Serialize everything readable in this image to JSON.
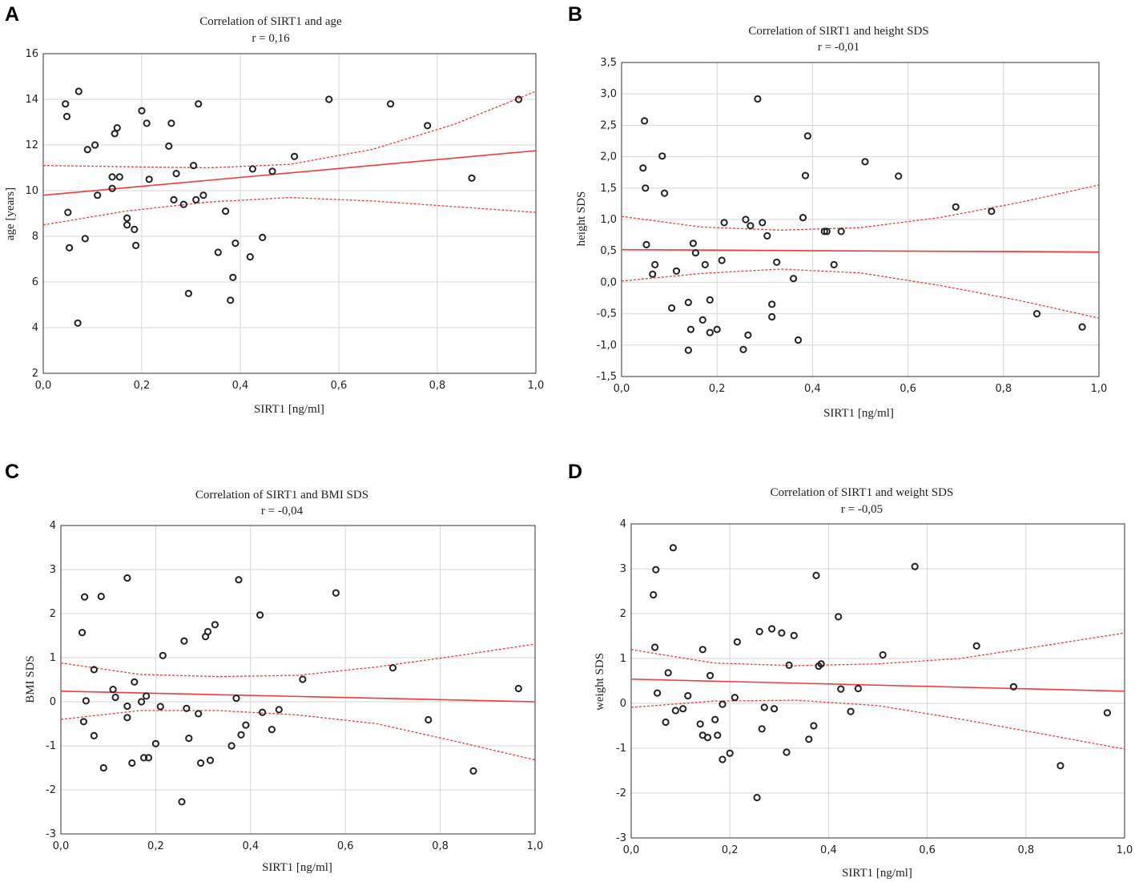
{
  "chart_data": [
    {
      "panel": "A",
      "type": "scatter",
      "title": "Correlation of SIRT1 and age",
      "r_label": "r =  0,16",
      "xlabel": "SIRT1 [ng/ml]",
      "ylabel": "age [years]",
      "xlim": [
        0,
        1
      ],
      "ylim": [
        2,
        16
      ],
      "xticks": [
        0,
        0.2,
        0.4,
        0.6,
        0.8,
        1.0
      ],
      "xtick_labels": [
        "0,0",
        "0,2",
        "0,4",
        "0,6",
        "0,8",
        "1,0"
      ],
      "yticks": [
        2,
        4,
        6,
        8,
        10,
        12,
        14,
        16
      ],
      "ytick_labels": [
        "2",
        "4",
        "6",
        "8",
        "10",
        "12",
        "14",
        "16"
      ],
      "grid": true,
      "regression": {
        "intercept": 9.8,
        "slope": 1.95
      },
      "ci": {
        "upper": [
          11.1,
          11.05,
          11.0,
          11.15,
          11.8,
          12.9,
          14.35
        ],
        "lower": [
          8.5,
          9.1,
          9.5,
          9.7,
          9.55,
          9.3,
          9.05
        ]
      },
      "points": [
        [
          0.045,
          13.8
        ],
        [
          0.048,
          13.25
        ],
        [
          0.05,
          9.05
        ],
        [
          0.053,
          7.5
        ],
        [
          0.07,
          4.2
        ],
        [
          0.072,
          14.35
        ],
        [
          0.085,
          7.9
        ],
        [
          0.09,
          11.8
        ],
        [
          0.105,
          12.0
        ],
        [
          0.11,
          9.8
        ],
        [
          0.14,
          10.6
        ],
        [
          0.14,
          10.1
        ],
        [
          0.145,
          12.5
        ],
        [
          0.15,
          12.75
        ],
        [
          0.155,
          10.6
        ],
        [
          0.17,
          8.8
        ],
        [
          0.17,
          8.5
        ],
        [
          0.185,
          8.3
        ],
        [
          0.188,
          7.6
        ],
        [
          0.2,
          13.5
        ],
        [
          0.21,
          12.95
        ],
        [
          0.215,
          10.5
        ],
        [
          0.255,
          11.95
        ],
        [
          0.26,
          12.95
        ],
        [
          0.265,
          9.6
        ],
        [
          0.27,
          10.75
        ],
        [
          0.285,
          9.4
        ],
        [
          0.295,
          5.5
        ],
        [
          0.305,
          11.1
        ],
        [
          0.31,
          9.6
        ],
        [
          0.315,
          13.8
        ],
        [
          0.325,
          9.8
        ],
        [
          0.355,
          7.3
        ],
        [
          0.37,
          9.1
        ],
        [
          0.38,
          5.2
        ],
        [
          0.385,
          6.2
        ],
        [
          0.39,
          7.7
        ],
        [
          0.42,
          7.1
        ],
        [
          0.425,
          10.95
        ],
        [
          0.445,
          7.95
        ],
        [
          0.465,
          10.85
        ],
        [
          0.51,
          11.5
        ],
        [
          0.58,
          14.0
        ],
        [
          0.705,
          13.8
        ],
        [
          0.78,
          12.85
        ],
        [
          0.87,
          10.55
        ],
        [
          0.965,
          14.0
        ]
      ]
    },
    {
      "panel": "B",
      "type": "scatter",
      "title": "Correlation of SIRT1 and height SDS",
      "r_label": "r =  -0,01",
      "xlabel": "SIRT1 [ng/ml]",
      "ylabel": "height SDS",
      "xlim": [
        0,
        1
      ],
      "ylim": [
        -1.5,
        3.5
      ],
      "xticks": [
        0,
        0.2,
        0.4,
        0.6,
        0.8,
        1.0
      ],
      "xtick_labels": [
        "0,0",
        "0,2",
        "0,4",
        "0,6",
        "0,8",
        "1,0"
      ],
      "yticks": [
        -1.5,
        -1.0,
        -0.5,
        0,
        0.5,
        1.0,
        1.5,
        2.0,
        2.5,
        3.0,
        3.5
      ],
      "ytick_labels": [
        "-1,5",
        "-1,0",
        "-0,5",
        "0,0",
        "0,5",
        "1,0",
        "1,5",
        "2,0",
        "2,5",
        "3,0",
        "3,5"
      ],
      "grid": true,
      "regression": {
        "intercept": 0.52,
        "slope": -0.04
      },
      "ci": {
        "upper": [
          1.05,
          0.88,
          0.83,
          0.87,
          1.03,
          1.27,
          1.55
        ],
        "lower": [
          0.02,
          0.14,
          0.21,
          0.15,
          -0.05,
          -0.29,
          -0.57
        ]
      },
      "points": [
        [
          0.045,
          1.82
        ],
        [
          0.048,
          2.57
        ],
        [
          0.05,
          1.5
        ],
        [
          0.052,
          0.6
        ],
        [
          0.065,
          0.13
        ],
        [
          0.07,
          0.28
        ],
        [
          0.085,
          2.01
        ],
        [
          0.09,
          1.42
        ],
        [
          0.105,
          -0.41
        ],
        [
          0.115,
          0.18
        ],
        [
          0.14,
          -0.32
        ],
        [
          0.14,
          -1.08
        ],
        [
          0.145,
          -0.75
        ],
        [
          0.15,
          0.62
        ],
        [
          0.155,
          0.47
        ],
        [
          0.17,
          -0.6
        ],
        [
          0.175,
          0.28
        ],
        [
          0.185,
          -0.28
        ],
        [
          0.185,
          -0.8
        ],
        [
          0.2,
          -0.75
        ],
        [
          0.21,
          0.35
        ],
        [
          0.215,
          0.95
        ],
        [
          0.255,
          -1.07
        ],
        [
          0.26,
          1.0
        ],
        [
          0.265,
          -0.84
        ],
        [
          0.27,
          0.9
        ],
        [
          0.285,
          2.92
        ],
        [
          0.295,
          0.95
        ],
        [
          0.305,
          0.74
        ],
        [
          0.315,
          -0.35
        ],
        [
          0.315,
          -0.55
        ],
        [
          0.325,
          0.32
        ],
        [
          0.36,
          0.06
        ],
        [
          0.37,
          -0.92
        ],
        [
          0.38,
          1.03
        ],
        [
          0.385,
          1.7
        ],
        [
          0.39,
          2.33
        ],
        [
          0.425,
          0.81
        ],
        [
          0.43,
          0.81
        ],
        [
          0.445,
          0.28
        ],
        [
          0.46,
          0.81
        ],
        [
          0.51,
          1.92
        ],
        [
          0.58,
          1.69
        ],
        [
          0.7,
          1.2
        ],
        [
          0.775,
          1.13
        ],
        [
          0.87,
          -0.5
        ],
        [
          0.965,
          -0.71
        ]
      ]
    },
    {
      "panel": "C",
      "type": "scatter",
      "title": "Correlation of SIRT1 and BMI SDS",
      "r_label": "r =  -0,04",
      "xlabel": "SIRT1 [ng/ml]",
      "ylabel": "BMI SDS",
      "xlim": [
        0,
        1
      ],
      "ylim": [
        -3,
        4
      ],
      "xticks": [
        0,
        0.2,
        0.4,
        0.6,
        0.8,
        1.0
      ],
      "xtick_labels": [
        "0,0",
        "0,2",
        "0,4",
        "0,6",
        "0,8",
        "1,0"
      ],
      "yticks": [
        -3,
        -2,
        -1,
        0,
        1,
        2,
        3,
        4
      ],
      "ytick_labels": [
        "-3",
        "-2",
        "-1",
        "0",
        "1",
        "2",
        "3",
        "4"
      ],
      "grid": true,
      "regression": {
        "intercept": 0.24,
        "slope": -0.24
      },
      "ci": {
        "upper": [
          0.88,
          0.62,
          0.57,
          0.6,
          0.79,
          1.04,
          1.31
        ],
        "lower": [
          -0.4,
          -0.2,
          -0.2,
          -0.3,
          -0.5,
          -0.9,
          -1.32
        ]
      },
      "points": [
        [
          0.045,
          1.57
        ],
        [
          0.048,
          -0.45
        ],
        [
          0.05,
          2.38
        ],
        [
          0.053,
          0.02
        ],
        [
          0.07,
          0.73
        ],
        [
          0.07,
          -0.77
        ],
        [
          0.085,
          2.39
        ],
        [
          0.09,
          -1.5
        ],
        [
          0.11,
          0.28
        ],
        [
          0.115,
          0.1
        ],
        [
          0.14,
          2.81
        ],
        [
          0.14,
          -0.1
        ],
        [
          0.14,
          -0.36
        ],
        [
          0.15,
          -1.39
        ],
        [
          0.155,
          0.45
        ],
        [
          0.17,
          0.0
        ],
        [
          0.175,
          -1.27
        ],
        [
          0.18,
          0.13
        ],
        [
          0.185,
          -1.27
        ],
        [
          0.2,
          -0.95
        ],
        [
          0.21,
          -0.11
        ],
        [
          0.215,
          1.05
        ],
        [
          0.255,
          -2.27
        ],
        [
          0.26,
          1.38
        ],
        [
          0.265,
          -0.15
        ],
        [
          0.27,
          -0.83
        ],
        [
          0.29,
          -0.27
        ],
        [
          0.295,
          -1.39
        ],
        [
          0.305,
          1.48
        ],
        [
          0.31,
          1.59
        ],
        [
          0.315,
          -1.33
        ],
        [
          0.325,
          1.75
        ],
        [
          0.36,
          -1.0
        ],
        [
          0.37,
          0.08
        ],
        [
          0.375,
          2.77
        ],
        [
          0.38,
          -0.75
        ],
        [
          0.39,
          -0.53
        ],
        [
          0.42,
          1.97
        ],
        [
          0.425,
          -0.24
        ],
        [
          0.445,
          -0.63
        ],
        [
          0.46,
          -0.18
        ],
        [
          0.51,
          0.51
        ],
        [
          0.58,
          2.47
        ],
        [
          0.7,
          0.77
        ],
        [
          0.775,
          -0.41
        ],
        [
          0.87,
          -1.57
        ],
        [
          0.965,
          0.3
        ]
      ]
    },
    {
      "panel": "D",
      "type": "scatter",
      "title": "Correlation of SIRT1 and weight SDS",
      "r_label": "r =  -0,05",
      "xlabel": "SIRT1 [ng/ml]",
      "ylabel": "weight SDS",
      "xlim": [
        0,
        1
      ],
      "ylim": [
        -3,
        4
      ],
      "xticks": [
        0,
        0.2,
        0.4,
        0.6,
        0.8,
        1.0
      ],
      "xtick_labels": [
        "0,0",
        "0,2",
        "0,4",
        "0,6",
        "0,8",
        "1,0"
      ],
      "yticks": [
        -3,
        -2,
        -1,
        0,
        1,
        2,
        3,
        4
      ],
      "ytick_labels": [
        "-3",
        "-2",
        "-1",
        "0",
        "1",
        "2",
        "3",
        "4"
      ],
      "grid": true,
      "regression": {
        "intercept": 0.54,
        "slope": -0.27
      },
      "ci": {
        "upper": [
          1.2,
          0.9,
          0.84,
          0.88,
          1.0,
          1.28,
          1.57
        ],
        "lower": [
          -0.09,
          0.05,
          0.07,
          -0.05,
          -0.35,
          -0.68,
          -1.02
        ]
      },
      "points": [
        [
          0.045,
          2.42
        ],
        [
          0.048,
          1.25
        ],
        [
          0.05,
          2.98
        ],
        [
          0.053,
          0.23
        ],
        [
          0.07,
          -0.42
        ],
        [
          0.075,
          0.68
        ],
        [
          0.085,
          3.47
        ],
        [
          0.09,
          -0.16
        ],
        [
          0.105,
          -0.12
        ],
        [
          0.115,
          0.17
        ],
        [
          0.14,
          -0.46
        ],
        [
          0.145,
          -0.71
        ],
        [
          0.145,
          1.2
        ],
        [
          0.155,
          -0.76
        ],
        [
          0.16,
          0.62
        ],
        [
          0.17,
          -0.36
        ],
        [
          0.175,
          -0.71
        ],
        [
          0.185,
          -0.02
        ],
        [
          0.185,
          -1.25
        ],
        [
          0.2,
          -1.11
        ],
        [
          0.21,
          0.13
        ],
        [
          0.215,
          1.37
        ],
        [
          0.255,
          -2.1
        ],
        [
          0.26,
          1.6
        ],
        [
          0.265,
          -0.57
        ],
        [
          0.27,
          -0.09
        ],
        [
          0.285,
          1.66
        ],
        [
          0.29,
          -0.12
        ],
        [
          0.305,
          1.57
        ],
        [
          0.315,
          -1.09
        ],
        [
          0.32,
          0.85
        ],
        [
          0.33,
          1.51
        ],
        [
          0.36,
          -0.8
        ],
        [
          0.37,
          -0.5
        ],
        [
          0.375,
          2.85
        ],
        [
          0.38,
          0.83
        ],
        [
          0.385,
          0.88
        ],
        [
          0.42,
          1.93
        ],
        [
          0.425,
          0.32
        ],
        [
          0.445,
          -0.18
        ],
        [
          0.46,
          0.33
        ],
        [
          0.51,
          1.08
        ],
        [
          0.575,
          3.05
        ],
        [
          0.7,
          1.28
        ],
        [
          0.775,
          0.37
        ],
        [
          0.87,
          -1.39
        ],
        [
          0.965,
          -0.21
        ]
      ]
    }
  ]
}
